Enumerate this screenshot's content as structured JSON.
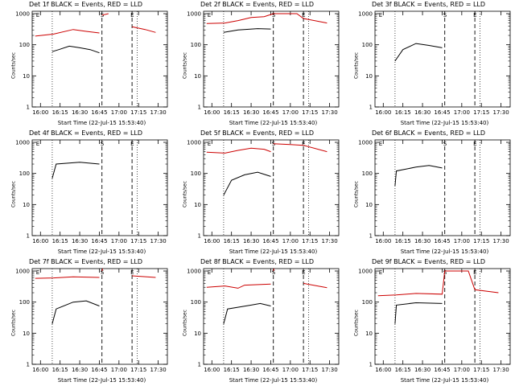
{
  "chart_data": [
    {
      "type": "line",
      "title": "Det 1f BLACK = Events, RED = LLD",
      "xlabel": "Start Time (22-Jul-15 15:53:40)",
      "ylabel": "Counts/sec",
      "x_ticks": [
        "16:00",
        "16:15",
        "16:30",
        "16:45",
        "17:00",
        "17:15",
        "17:30"
      ],
      "y_ticks": [
        "1",
        "10",
        "100",
        "1000"
      ],
      "ylim": [
        1,
        1000
      ],
      "log_y": true,
      "markers": [
        {
          "label": "E",
          "time": "15:56"
        },
        {
          "label": "S",
          "time": "16:47"
        },
        {
          "label": "E",
          "time": "17:10"
        }
      ],
      "series": [
        {
          "color": "#000000",
          "segments": [
            [
              [
                "16:09",
                60
              ],
              [
                "16:14",
                70
              ],
              [
                "16:22",
                90
              ],
              [
                "16:30",
                80
              ],
              [
                "16:38",
                70
              ],
              [
                "16:45",
                55
              ]
            ]
          ]
        },
        {
          "color": "#cc0000",
          "segments": [
            [
              [
                "15:56",
                190
              ],
              [
                "16:10",
                220
              ],
              [
                "16:25",
                310
              ],
              [
                "16:35",
                270
              ],
              [
                "16:45",
                240
              ]
            ],
            [
              [
                "16:47",
                900
              ],
              [
                "16:52",
                1000
              ]
            ],
            [
              [
                "17:10",
                380
              ],
              [
                "17:20",
                310
              ],
              [
                "17:28",
                250
              ]
            ]
          ]
        }
      ]
    },
    {
      "type": "line",
      "title": "Det 2f BLACK = Events, RED = LLD",
      "xlabel": "Start Time (22-Jul-15 15:53:40)",
      "ylabel": "Counts/sec",
      "x_ticks": [
        "16:00",
        "16:15",
        "16:30",
        "16:45",
        "17:00",
        "17:15",
        "17:30"
      ],
      "y_ticks": [
        "1",
        "10",
        "100",
        "1000"
      ],
      "ylim": [
        1,
        1000
      ],
      "log_y": true,
      "markers": [
        {
          "label": "E",
          "time": "15:56"
        },
        {
          "label": "S",
          "time": "16:47"
        },
        {
          "label": "E",
          "time": "17:10"
        }
      ],
      "series": [
        {
          "color": "#000000",
          "segments": [
            [
              [
                "16:09",
                250
              ],
              [
                "16:20",
                300
              ],
              [
                "16:35",
                330
              ],
              [
                "16:45",
                320
              ]
            ]
          ]
        },
        {
          "color": "#cc0000",
          "segments": [
            [
              [
                "15:56",
                480
              ],
              [
                "16:10",
                500
              ],
              [
                "16:20",
                600
              ],
              [
                "16:30",
                750
              ],
              [
                "16:40",
                800
              ],
              [
                "16:47",
                1000
              ],
              [
                "17:05",
                1000
              ],
              [
                "17:10",
                700
              ],
              [
                "17:28",
                500
              ]
            ]
          ]
        }
      ]
    },
    {
      "type": "line",
      "title": "Det 3f BLACK = Events, RED = LLD",
      "xlabel": "Start Time (22-Jul-15 15:53:40)",
      "ylabel": "Counts/sec",
      "x_ticks": [
        "16:00",
        "16:15",
        "16:30",
        "16:45",
        "17:00",
        "17:15",
        "17:30"
      ],
      "y_ticks": [
        "1",
        "10",
        "100",
        "1000"
      ],
      "ylim": [
        1,
        1000
      ],
      "log_y": true,
      "markers": [
        {
          "label": "E",
          "time": "15:56"
        },
        {
          "label": "S",
          "time": "16:47"
        },
        {
          "label": "E",
          "time": "17:10"
        }
      ],
      "series": [
        {
          "color": "#000000",
          "segments": [
            [
              [
                "16:09",
                30
              ],
              [
                "16:15",
                70
              ],
              [
                "16:25",
                110
              ],
              [
                "16:35",
                95
              ],
              [
                "16:45",
                80
              ]
            ]
          ]
        }
      ]
    },
    {
      "type": "line",
      "title": "Det 4f BLACK = Events, RED = LLD",
      "xlabel": "Start Time (22-Jul-15 15:53:40)",
      "ylabel": "Counts/sec",
      "x_ticks": [
        "16:00",
        "16:15",
        "16:30",
        "16:45",
        "17:00",
        "17:15",
        "17:30"
      ],
      "y_ticks": [
        "1",
        "10",
        "100",
        "1000"
      ],
      "ylim": [
        1,
        1000
      ],
      "log_y": true,
      "markers": [
        {
          "label": "E",
          "time": "15:56"
        },
        {
          "label": "S",
          "time": "16:47"
        },
        {
          "label": "E",
          "time": "17:10"
        }
      ],
      "series": [
        {
          "color": "#000000",
          "segments": [
            [
              [
                "16:09",
                70
              ],
              [
                "16:12",
                200
              ],
              [
                "16:30",
                230
              ],
              [
                "16:45",
                200
              ]
            ]
          ]
        }
      ]
    },
    {
      "type": "line",
      "title": "Det 5f BLACK = Events, RED = LLD",
      "xlabel": "Start Time (22-Jul-15 15:53:40)",
      "ylabel": "Counts/sec",
      "x_ticks": [
        "16:00",
        "16:15",
        "16:30",
        "16:45",
        "17:00",
        "17:15",
        "17:30"
      ],
      "y_ticks": [
        "1",
        "10",
        "100",
        "1000"
      ],
      "ylim": [
        1,
        1000
      ],
      "log_y": true,
      "markers": [
        {
          "label": "E",
          "time": "15:56"
        },
        {
          "label": "S",
          "time": "16:47"
        },
        {
          "label": "E",
          "time": "17:10"
        }
      ],
      "series": [
        {
          "color": "#000000",
          "segments": [
            [
              [
                "16:09",
                20
              ],
              [
                "16:15",
                60
              ],
              [
                "16:25",
                90
              ],
              [
                "16:35",
                110
              ],
              [
                "16:45",
                80
              ]
            ]
          ]
        },
        {
          "color": "#cc0000",
          "segments": [
            [
              [
                "15:56",
                480
              ],
              [
                "16:10",
                450
              ],
              [
                "16:20",
                550
              ],
              [
                "16:30",
                650
              ],
              [
                "16:40",
                600
              ],
              [
                "16:45",
                500
              ]
            ],
            [
              [
                "16:47",
                900
              ],
              [
                "17:00",
                850
              ],
              [
                "17:10",
                800
              ],
              [
                "17:28",
                500
              ]
            ]
          ]
        }
      ]
    },
    {
      "type": "line",
      "title": "Det 6f BLACK = Events, RED = LLD",
      "xlabel": "Start Time (22-Jul-15 15:53:40)",
      "ylabel": "Counts/sec",
      "x_ticks": [
        "16:00",
        "16:15",
        "16:30",
        "16:45",
        "17:00",
        "17:15",
        "17:30"
      ],
      "y_ticks": [
        "1",
        "10",
        "100",
        "1000"
      ],
      "ylim": [
        1,
        1000
      ],
      "log_y": true,
      "markers": [
        {
          "label": "E",
          "time": "15:56"
        },
        {
          "label": "S",
          "time": "16:47"
        },
        {
          "label": "E",
          "time": "17:10"
        }
      ],
      "series": [
        {
          "color": "#000000",
          "segments": [
            [
              [
                "16:09",
                40
              ],
              [
                "16:10",
                120
              ],
              [
                "16:25",
                160
              ],
              [
                "16:35",
                180
              ],
              [
                "16:45",
                150
              ]
            ]
          ]
        }
      ]
    },
    {
      "type": "line",
      "title": "Det 7f BLACK = Events, RED = LLD",
      "xlabel": "Start Time (22-Jul-15 15:53:40)",
      "ylabel": "Counts/sec",
      "x_ticks": [
        "16:00",
        "16:15",
        "16:30",
        "16:45",
        "17:00",
        "17:15",
        "17:30"
      ],
      "y_ticks": [
        "1",
        "10",
        "100",
        "1000"
      ],
      "ylim": [
        1,
        1000
      ],
      "log_y": true,
      "markers": [
        {
          "label": "E",
          "time": "15:56"
        },
        {
          "label": "S",
          "time": "16:47"
        },
        {
          "label": "E",
          "time": "17:10"
        }
      ],
      "series": [
        {
          "color": "#000000",
          "segments": [
            [
              [
                "16:09",
                20
              ],
              [
                "16:12",
                60
              ],
              [
                "16:25",
                100
              ],
              [
                "16:35",
                110
              ],
              [
                "16:45",
                75
              ]
            ]
          ]
        },
        {
          "color": "#cc0000",
          "segments": [
            [
              [
                "15:56",
                580
              ],
              [
                "16:10",
                600
              ],
              [
                "16:25",
                650
              ],
              [
                "16:45",
                620
              ]
            ],
            [
              [
                "16:47",
                1000
              ]
            ],
            [
              [
                "17:10",
                700
              ],
              [
                "17:28",
                620
              ]
            ]
          ]
        }
      ]
    },
    {
      "type": "line",
      "title": "Det 8f BLACK = Events, RED = LLD",
      "xlabel": "Start Time (22-Jul-15 15:53:40)",
      "ylabel": "Counts/sec",
      "x_ticks": [
        "16:00",
        "16:15",
        "16:30",
        "16:45",
        "17:00",
        "17:15",
        "17:30"
      ],
      "y_ticks": [
        "1",
        "10",
        "100",
        "1000"
      ],
      "ylim": [
        1,
        1000
      ],
      "log_y": true,
      "markers": [
        {
          "label": "E",
          "time": "15:56"
        },
        {
          "label": "S",
          "time": "16:47"
        },
        {
          "label": "E",
          "time": "17:10"
        }
      ],
      "series": [
        {
          "color": "#000000",
          "segments": [
            [
              [
                "16:09",
                20
              ],
              [
                "16:12",
                60
              ],
              [
                "16:30",
                80
              ],
              [
                "16:37",
                90
              ],
              [
                "16:45",
                75
              ]
            ]
          ]
        },
        {
          "color": "#cc0000",
          "segments": [
            [
              [
                "15:56",
                300
              ],
              [
                "16:10",
                330
              ],
              [
                "16:20",
                280
              ],
              [
                "16:25",
                350
              ],
              [
                "16:45",
                380
              ]
            ],
            [
              [
                "16:47",
                1000
              ]
            ],
            [
              [
                "17:10",
                400
              ],
              [
                "17:28",
                290
              ]
            ]
          ]
        }
      ]
    },
    {
      "type": "line",
      "title": "Det 9f BLACK = Events, RED = LLD",
      "xlabel": "Start Time (22-Jul-15 15:53:40)",
      "ylabel": "Counts/sec",
      "x_ticks": [
        "16:00",
        "16:15",
        "16:30",
        "16:45",
        "17:00",
        "17:15",
        "17:30"
      ],
      "y_ticks": [
        "1",
        "10",
        "100",
        "1000"
      ],
      "ylim": [
        1,
        1000
      ],
      "log_y": true,
      "markers": [
        {
          "label": "E",
          "time": "15:56"
        },
        {
          "label": "S",
          "time": "16:47"
        },
        {
          "label": "E",
          "time": "17:10"
        }
      ],
      "series": [
        {
          "color": "#000000",
          "segments": [
            [
              [
                "16:09",
                20
              ],
              [
                "16:10",
                80
              ],
              [
                "16:25",
                95
              ],
              [
                "16:45",
                90
              ]
            ]
          ]
        },
        {
          "color": "#cc0000",
          "segments": [
            [
              [
                "15:56",
                160
              ],
              [
                "16:10",
                170
              ],
              [
                "16:25",
                190
              ],
              [
                "16:45",
                180
              ],
              [
                "16:47",
                1000
              ],
              [
                "17:05",
                1000
              ],
              [
                "17:10",
                250
              ],
              [
                "17:28",
                200
              ]
            ]
          ]
        }
      ]
    }
  ]
}
